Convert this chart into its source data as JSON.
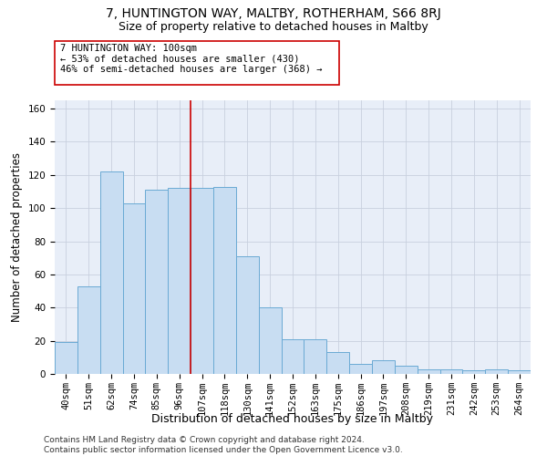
{
  "title_line1": "7, HUNTINGTON WAY, MALTBY, ROTHERHAM, S66 8RJ",
  "title_line2": "Size of property relative to detached houses in Maltby",
  "xlabel": "Distribution of detached houses by size in Maltby",
  "ylabel": "Number of detached properties",
  "categories": [
    "40sqm",
    "51sqm",
    "62sqm",
    "74sqm",
    "85sqm",
    "96sqm",
    "107sqm",
    "118sqm",
    "130sqm",
    "141sqm",
    "152sqm",
    "163sqm",
    "175sqm",
    "186sqm",
    "197sqm",
    "208sqm",
    "219sqm",
    "231sqm",
    "242sqm",
    "253sqm",
    "264sqm"
  ],
  "values": [
    19,
    53,
    122,
    103,
    111,
    112,
    112,
    113,
    71,
    40,
    21,
    21,
    13,
    6,
    8,
    5,
    3,
    3,
    2,
    3,
    2
  ],
  "bar_color": "#c8ddf2",
  "bar_edge_color": "#6aaad4",
  "grid_color": "#c8d0de",
  "background_color": "#e8eef8",
  "vline_x_pos": 6.5,
  "vline_color": "#cc0000",
  "annotation_line1": "7 HUNTINGTON WAY: 100sqm",
  "annotation_line2": "← 53% of detached houses are smaller (430)",
  "annotation_line3": "46% of semi-detached houses are larger (368) →",
  "annotation_box_color": "#ffffff",
  "annotation_border_color": "#cc0000",
  "ylim": [
    0,
    165
  ],
  "yticks": [
    0,
    20,
    40,
    60,
    80,
    100,
    120,
    140,
    160
  ],
  "footer_text": "Contains HM Land Registry data © Crown copyright and database right 2024.\nContains public sector information licensed under the Open Government Licence v3.0.",
  "title1_fontsize": 10,
  "title2_fontsize": 9,
  "xlabel_fontsize": 9,
  "ylabel_fontsize": 8.5,
  "tick_fontsize": 7.5,
  "annotation_fontsize": 7.5,
  "footer_fontsize": 6.5
}
